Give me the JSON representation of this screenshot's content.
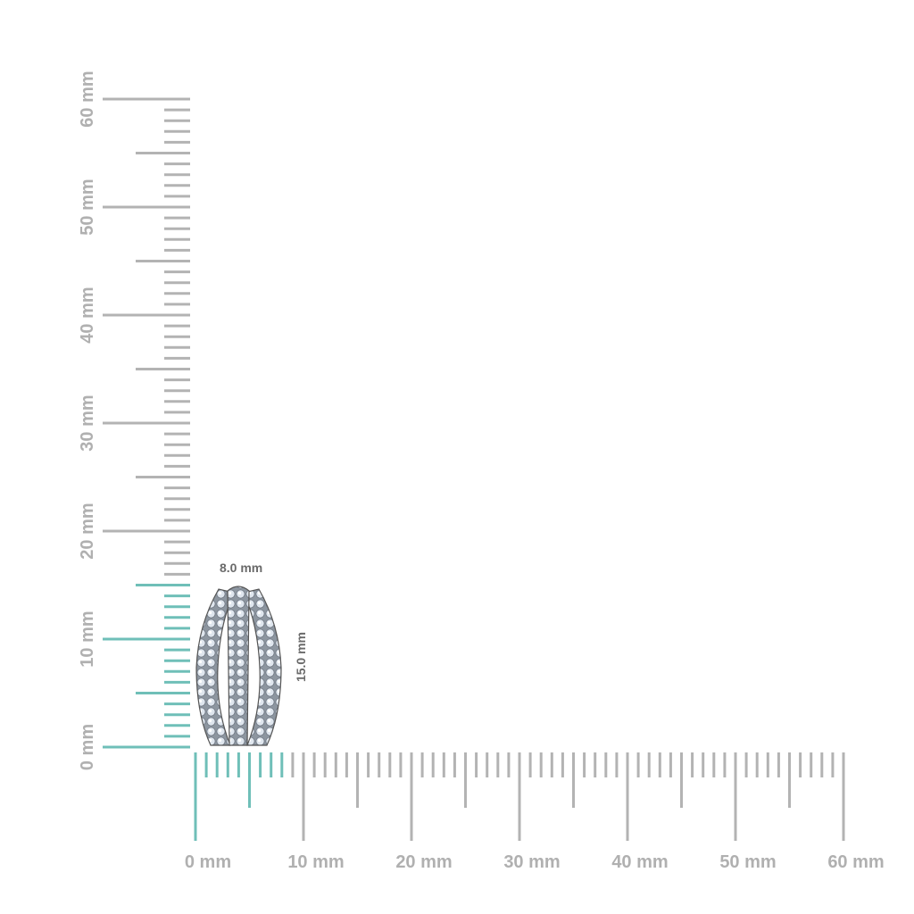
{
  "rulers": {
    "unit": "mm",
    "max": 60,
    "horizontal_labels": [
      "0 mm",
      "10 mm",
      "20 mm",
      "30 mm",
      "40 mm",
      "50 mm",
      "60 mm"
    ],
    "vertical_labels": [
      "0 mm",
      "10 mm",
      "20 mm",
      "30 mm",
      "40 mm",
      "50 mm",
      "60 mm"
    ],
    "highlight_width_mm": 8,
    "highlight_height_mm": 15
  },
  "dimensions": {
    "width_label": "8.0 mm",
    "height_label": "15.0 mm"
  },
  "colors": {
    "ruler": "#b3b3b3",
    "highlight": "#6fbfb8",
    "label": "#b0b0b0",
    "dimension_text": "#6a6a6a"
  },
  "product": {
    "icon": "three-row-diamond-earring"
  }
}
